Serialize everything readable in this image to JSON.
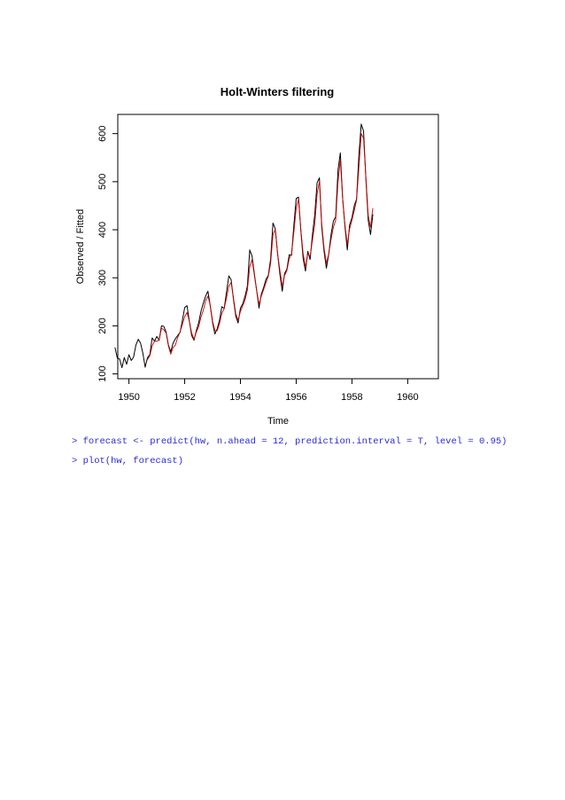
{
  "chart_data": {
    "type": "line",
    "title": "Holt-Winters filtering",
    "xlabel": "Time",
    "ylabel": "Observed / Fitted",
    "xlim": [
      1949.6,
      1961.1
    ],
    "ylim": [
      90,
      640
    ],
    "x_ticks": [
      "1950",
      "1952",
      "1954",
      "1956",
      "1958",
      "1960"
    ],
    "y_ticks": [
      "100",
      "200",
      "300",
      "400",
      "500",
      "600"
    ],
    "x_start": 1949.5,
    "x_step_months": 1,
    "series": [
      {
        "color": "#000000",
        "values": [
          155,
          133,
          131,
          113,
          134,
          120,
          140,
          128,
          135,
          160,
          172,
          164,
          143,
          114,
          134,
          140,
          175,
          168,
          178,
          170,
          200,
          199,
          187,
          160,
          146,
          164,
          173,
          180,
          186,
          211,
          238,
          242,
          210,
          180,
          170,
          190,
          206,
          230,
          247,
          262,
          272,
          242,
          207,
          183,
          194,
          212,
          240,
          236,
          270,
          304,
          296,
          255,
          220,
          206,
          237,
          246,
          262,
          283,
          358,
          345,
          308,
          273,
          237,
          266,
          280,
          297,
          305,
          339,
          414,
          402,
          350,
          307,
          272,
          309,
          318,
          348,
          347,
          409,
          465,
          468,
          398,
          340,
          314,
          355,
          338,
          390,
          432,
          498,
          508,
          405,
          355,
          320,
          349,
          390,
          418,
          427,
          524,
          560,
          465,
          406,
          358,
          410,
          425,
          450,
          464,
          556,
          620,
          605,
          506,
          420,
          390,
          432
        ]
      },
      {
        "color": "#cc0000",
        "values": [
          null,
          null,
          null,
          null,
          null,
          null,
          null,
          null,
          null,
          null,
          null,
          null,
          null,
          null,
          130,
          138,
          158,
          168,
          168,
          170,
          195,
          192,
          185,
          158,
          141,
          155,
          160,
          176,
          187,
          203,
          219,
          228,
          210,
          185,
          172,
          187,
          198,
          218,
          232,
          252,
          262,
          243,
          210,
          190,
          190,
          205,
          226,
          236,
          258,
          283,
          290,
          258,
          225,
          212,
          230,
          242,
          254,
          275,
          323,
          338,
          305,
          273,
          245,
          262,
          276,
          290,
          303,
          330,
          390,
          401,
          350,
          315,
          282,
          305,
          315,
          340,
          350,
          395,
          445,
          463,
          400,
          350,
          322,
          350,
          345,
          378,
          412,
          475,
          500,
          412,
          362,
          330,
          350,
          380,
          405,
          420,
          500,
          545,
          465,
          410,
          370,
          402,
          420,
          440,
          462,
          530,
          600,
          590,
          510,
          430,
          405,
          445
        ]
      }
    ]
  },
  "code": {
    "line1": "> forecast <- predict(hw, n.ahead = 12, prediction.interval = T, level = 0.95)",
    "line2": "> plot(hw, forecast)"
  }
}
